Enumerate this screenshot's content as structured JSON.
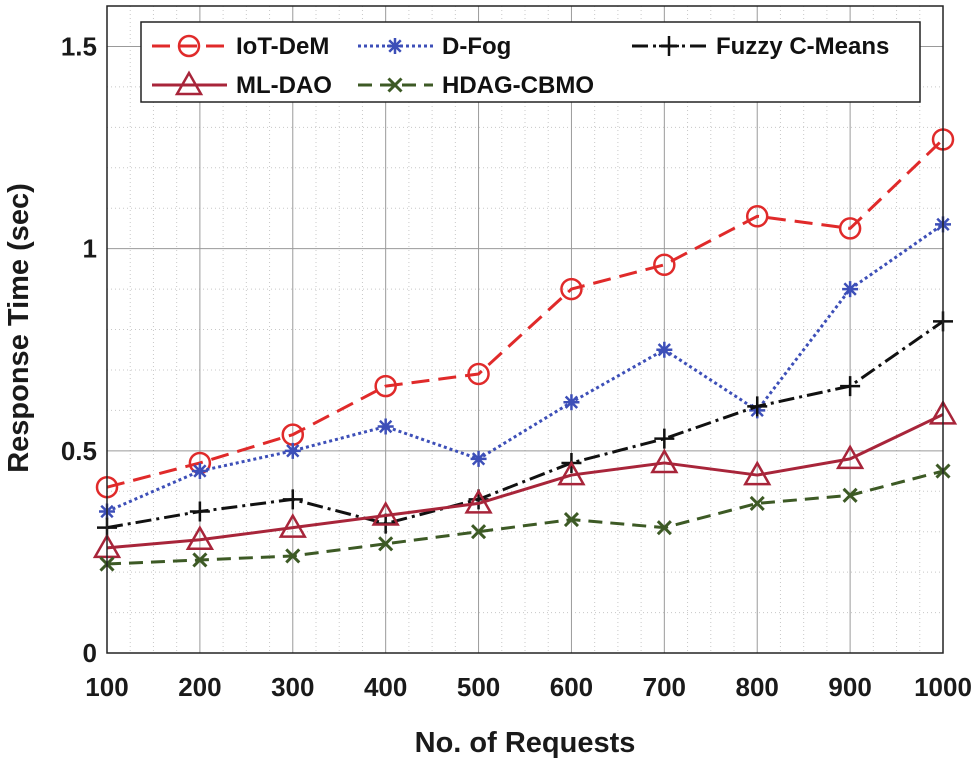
{
  "chart_data": {
    "type": "line",
    "title": "",
    "xlabel": "No. of Requests",
    "ylabel": "Response Time (sec)",
    "x": [
      100,
      200,
      300,
      400,
      500,
      600,
      700,
      800,
      900,
      1000
    ],
    "xlim": [
      100,
      1000
    ],
    "ylim": [
      0,
      1.6
    ],
    "x_ticks": [
      "100",
      "200",
      "300",
      "400",
      "500",
      "600",
      "700",
      "800",
      "900",
      "1000"
    ],
    "y_ticks": [
      {
        "value": 0,
        "label": "0"
      },
      {
        "value": 0.5,
        "label": "0.5"
      },
      {
        "value": 1,
        "label": "1"
      },
      {
        "value": 1.5,
        "label": "1.5"
      }
    ],
    "grid": true,
    "legend_position": "top",
    "series": [
      {
        "name": "IoT-DeM",
        "color": "#e02a2a",
        "dash": "18,9",
        "marker": "circle",
        "values": [
          0.41,
          0.47,
          0.54,
          0.66,
          0.69,
          0.9,
          0.96,
          1.08,
          1.05,
          1.27
        ]
      },
      {
        "name": "D-Fog",
        "color": "#3d4fb8",
        "dash": "3,3",
        "marker": "asterisk",
        "values": [
          0.35,
          0.45,
          0.5,
          0.56,
          0.48,
          0.62,
          0.75,
          0.6,
          0.9,
          1.06
        ]
      },
      {
        "name": "Fuzzy C-Means",
        "color": "#111111",
        "dash": "16,5,3,5",
        "marker": "plus",
        "values": [
          0.31,
          0.35,
          0.38,
          0.32,
          0.38,
          0.47,
          0.53,
          0.61,
          0.66,
          0.82
        ]
      },
      {
        "name": "ML-DAO",
        "color": "#a8253a",
        "dash": "",
        "marker": "triangle",
        "values": [
          0.26,
          0.28,
          0.31,
          0.34,
          0.37,
          0.44,
          0.47,
          0.44,
          0.48,
          0.59
        ]
      },
      {
        "name": "HDAG-CBMO",
        "color": "#3d5a25",
        "dash": "14,8",
        "marker": "x",
        "values": [
          0.22,
          0.23,
          0.24,
          0.27,
          0.3,
          0.33,
          0.31,
          0.37,
          0.39,
          0.45
        ]
      }
    ]
  }
}
